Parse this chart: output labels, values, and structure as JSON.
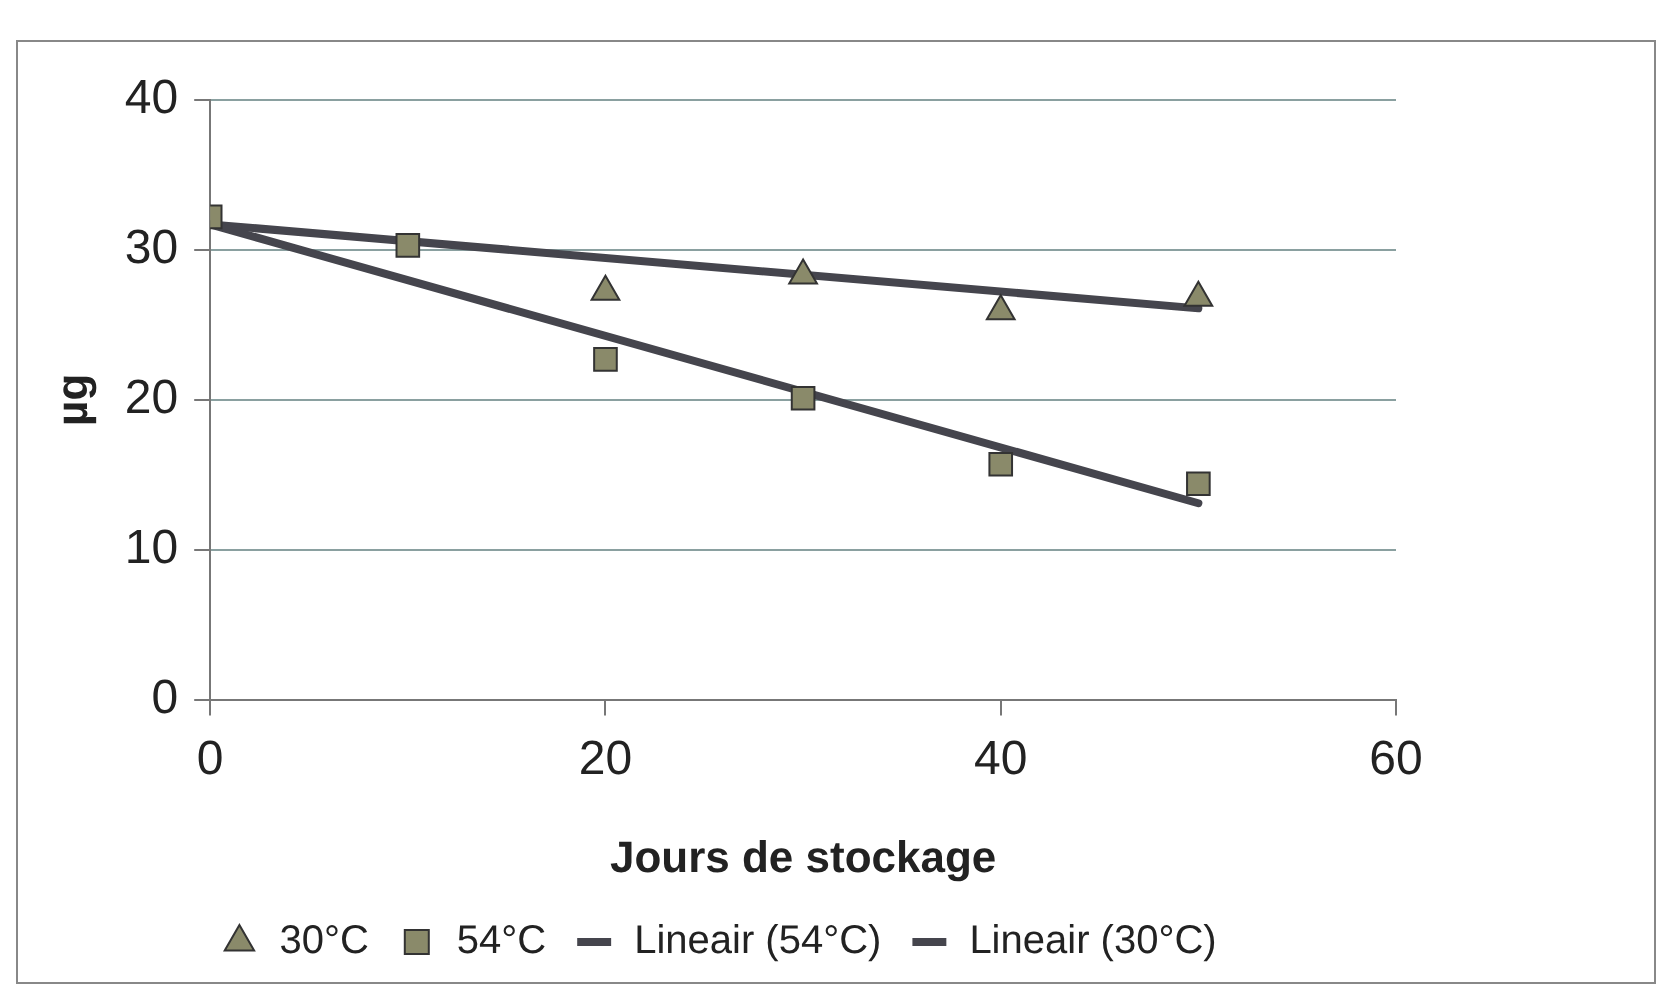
{
  "chart_data": {
    "type": "scatter",
    "xlabel": "Jours de stockage",
    "ylabel": "µg",
    "xlim": [
      0,
      60
    ],
    "xticks": [
      0,
      20,
      40,
      60
    ],
    "ylim": [
      0,
      40
    ],
    "yticks": [
      0,
      10,
      20,
      30,
      40
    ],
    "grid": "y",
    "legend": "bottom",
    "series": [
      {
        "name": "30°C",
        "marker": "triangle",
        "color": "#8a8a6a",
        "x": [
          20,
          30,
          40,
          50
        ],
        "values": [
          27.2,
          28.3,
          25.9,
          26.8
        ]
      },
      {
        "name": "54°C",
        "marker": "square",
        "color": "#8a8a6a",
        "x": [
          0,
          10,
          20,
          30,
          40,
          50
        ],
        "values": [
          32.2,
          30.3,
          22.7,
          20.1,
          15.7,
          14.4
        ]
      },
      {
        "name": "Lineair (54°C)",
        "type": "line",
        "marker": "none",
        "color": "#45454d",
        "x": [
          0,
          50
        ],
        "values": [
          31.7,
          13.1
        ]
      },
      {
        "name": "Lineair (30°C)",
        "type": "line",
        "marker": "none",
        "color": "#45454d",
        "x": [
          0,
          50
        ],
        "values": [
          31.7,
          26.1
        ]
      }
    ]
  }
}
